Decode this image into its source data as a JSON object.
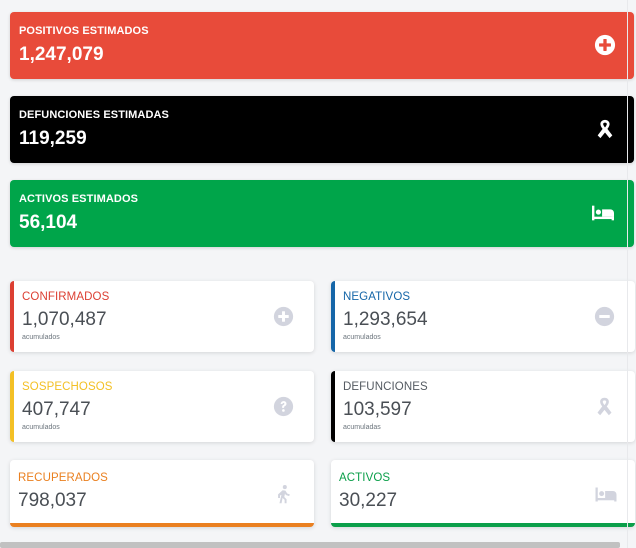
{
  "estimated": [
    {
      "label": "POSITIVOS ESTIMADOS",
      "value": "1,247,079",
      "color": "#e84b3a",
      "icon": "plus-circle-icon"
    },
    {
      "label": "DEFUNCIONES ESTIMADAS",
      "value": "119,259",
      "color": "#000000",
      "icon": "ribbon-icon"
    },
    {
      "label": "ACTIVOS ESTIMADOS",
      "value": "56,104",
      "color": "#00a54a",
      "icon": "bed-icon"
    }
  ],
  "cards": {
    "confirmados": {
      "label": "CONFIRMADOS",
      "value": "1,070,487",
      "sub": "acumulados",
      "color": "#dc3f32"
    },
    "negativos": {
      "label": "NEGATIVOS",
      "value": "1,293,654",
      "sub": "acumulados",
      "color": "#1566a8"
    },
    "sospechosos": {
      "label": "SOSPECHOSOS",
      "value": "407,747",
      "sub": "acumulados",
      "color": "#f3c025"
    },
    "defunciones": {
      "label": "DEFUNCIONES",
      "value": "103,597",
      "sub": "acumuladas",
      "color": "#000000"
    },
    "recuperados": {
      "label": "RECUPERADOS",
      "value": "798,037",
      "color": "#ea8020"
    },
    "activos": {
      "label": "ACTIVOS",
      "value": "30,227",
      "color": "#0b9f4a"
    }
  },
  "icon_colors": {
    "muted": "#d2d4de",
    "white": "#ffffff"
  }
}
